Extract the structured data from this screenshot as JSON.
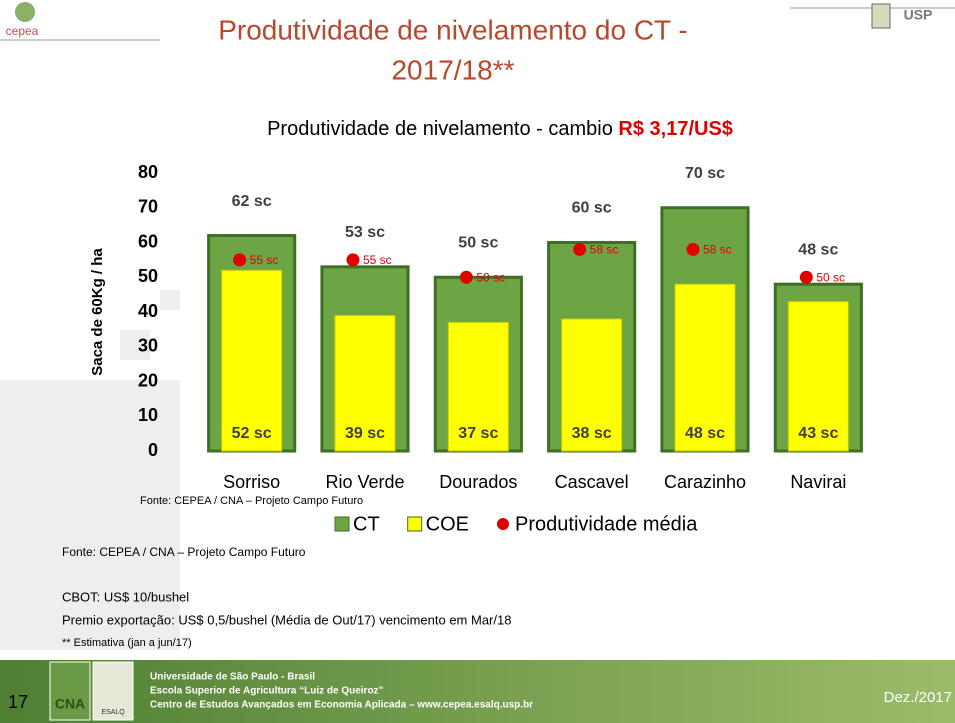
{
  "slide": {
    "title_lines": [
      "Produtividade de nivelamento do CT -",
      "2017/18**"
    ],
    "logo_left": "cepea",
    "logo_right": "USP"
  },
  "chart_data": {
    "type": "bar",
    "barmode": "overlay",
    "title": "Produtividade de nivelamento  - cambio ",
    "title_highlight": "R$ 3,17/US$",
    "ylabel": "Saca de 60Kg / ha",
    "categories": [
      "Sorriso",
      "Rio Verde",
      "Dourados",
      "Cascavel",
      "Carazinho",
      "Navirai"
    ],
    "series": [
      {
        "name": "CT",
        "color": "#6ea544",
        "values": [
          62,
          53,
          50,
          60,
          70,
          48
        ],
        "value_labels": [
          "62 sc",
          "53 sc",
          "50 sc",
          "60 sc",
          "70 sc",
          "48 sc"
        ]
      },
      {
        "name": "COE",
        "color": "#ffff00",
        "values": [
          52,
          39,
          37,
          38,
          48,
          43
        ],
        "value_labels": [
          "52 sc",
          "39 sc",
          "37 sc",
          "38 sc",
          "48 sc",
          "43 sc"
        ]
      },
      {
        "name": "Produtividade média",
        "type": "scatter",
        "color": "#e00000",
        "values": [
          55,
          55,
          50,
          58,
          58,
          50
        ],
        "value_labels": [
          "55 sc",
          "55 sc",
          "50 sc",
          "58 sc",
          "58 sc",
          "50 sc"
        ]
      }
    ],
    "ylim": [
      0,
      80
    ],
    "yticks": [
      0,
      10,
      20,
      30,
      40,
      50,
      60,
      70,
      80
    ],
    "grid": false,
    "legend": "bottom",
    "source": "Fonte: CEPEA / CNA – Projeto Campo Futuro"
  },
  "notes": [
    "Fonte: CEPEA / CNA – Projeto Campo Futuro",
    "CBOT: US$ 10/bushel",
    "Premio exportação: US$ 0,5/bushel (Média de Out/17) vencimento em Mar/18",
    "** Estimativa (jan a jun/17)"
  ],
  "footer": {
    "page": "17",
    "lines": [
      "Universidade de São Paulo - Brasil",
      "Escola Superior de Agricultura “Luiz de Queiroz”",
      "Centro de Estudos Avançados em Economia Aplicada – www.cepea.esalq.usp.br"
    ],
    "date": "Dez./2017",
    "logo_cna": "CNA",
    "logo_esalq": "ESALQ"
  }
}
